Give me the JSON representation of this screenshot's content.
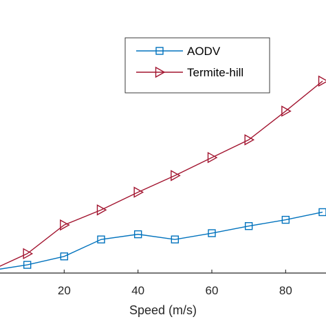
{
  "chart_data": {
    "type": "line",
    "xlabel": "Speed (m/s)",
    "ylabel": "",
    "xlim": [
      0,
      90
    ],
    "ylim": [
      0,
      100
    ],
    "x_ticks": [
      20,
      40,
      60,
      80
    ],
    "x_tick_labels": [
      "20",
      "40",
      "60",
      "80"
    ],
    "grid": false,
    "legend_position": "top-right",
    "series": [
      {
        "name": "AODV",
        "color": "#0072BD",
        "marker": "square",
        "x": [
          0,
          10,
          20,
          30,
          40,
          50,
          60,
          70,
          80,
          90
        ],
        "y": [
          0.9,
          3.0,
          6.1,
          12.3,
          14.2,
          12.3,
          14.6,
          17.2,
          19.5,
          22.3
        ]
      },
      {
        "name": "Termite-hill",
        "color": "#A2142F",
        "marker": "triangle-right",
        "x": [
          0,
          10,
          20,
          30,
          40,
          50,
          60,
          70,
          80,
          90
        ],
        "y": [
          0.9,
          7.1,
          17.6,
          23.1,
          29.6,
          35.7,
          42.3,
          48.8,
          59.3,
          70.3
        ]
      }
    ]
  }
}
